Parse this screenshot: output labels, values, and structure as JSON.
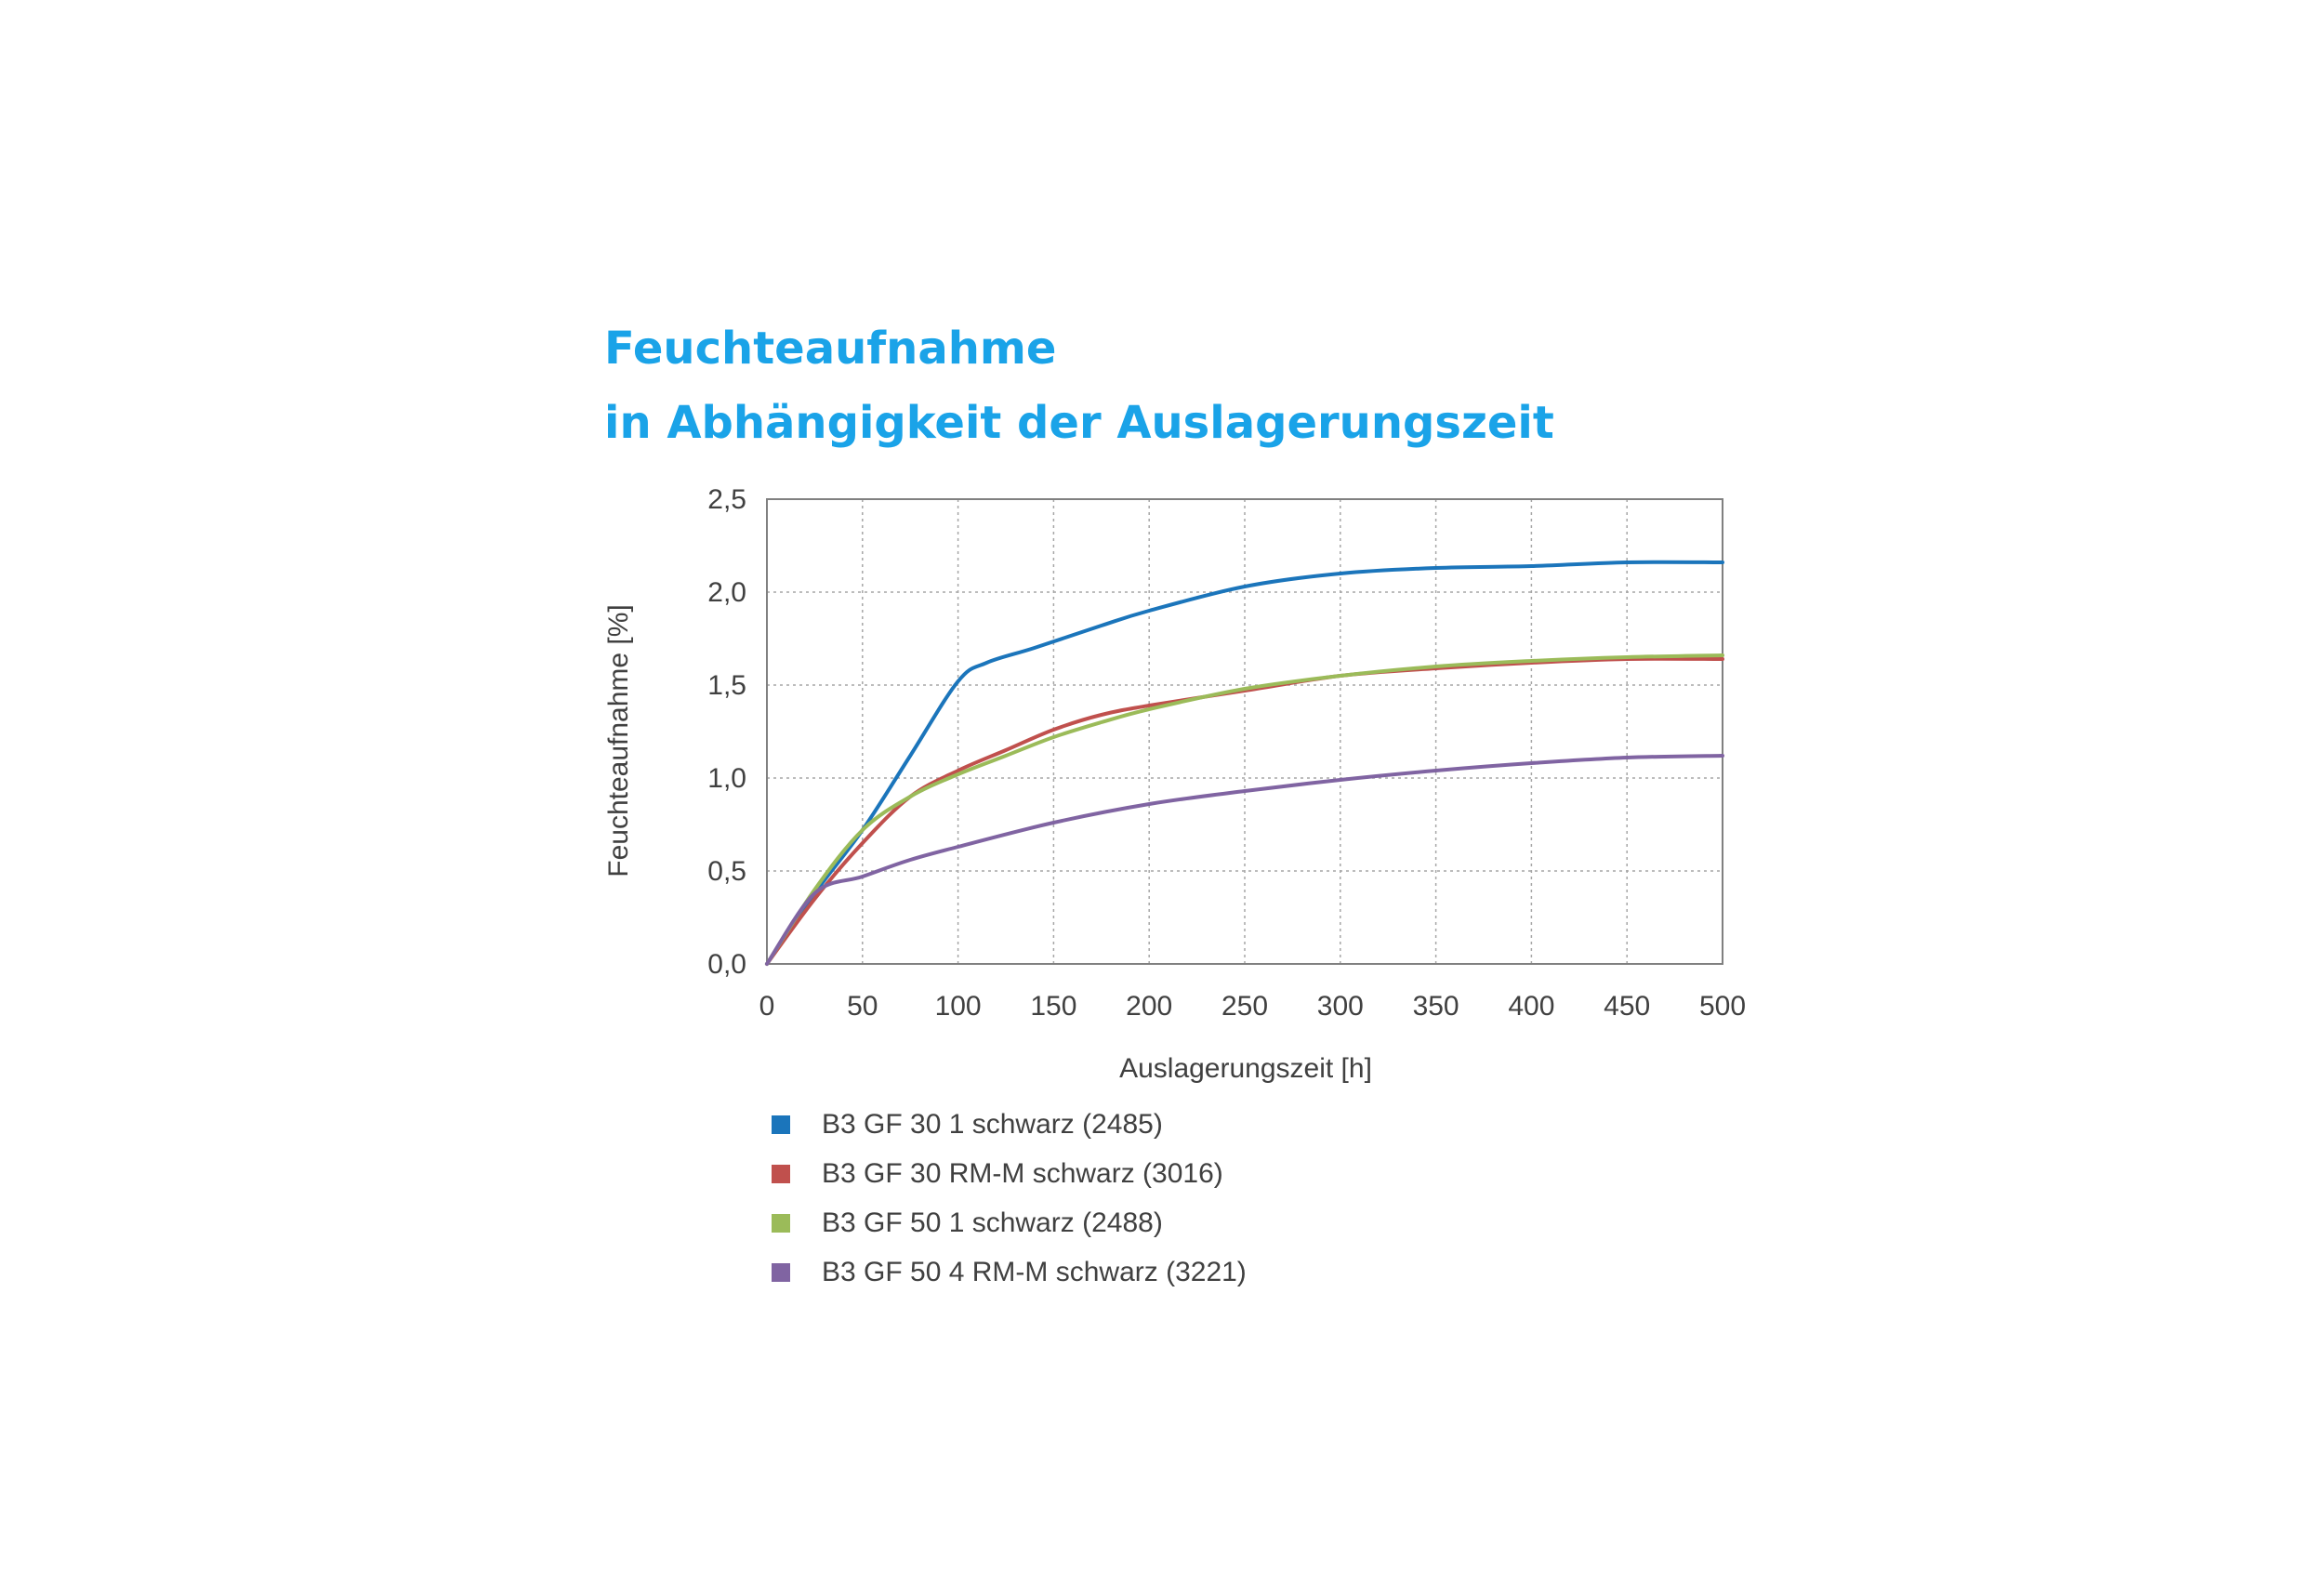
{
  "title_lines": [
    "Feuchteaufnahme",
    "in Abhängigkeit der Auslagerungszeit"
  ],
  "chart_data": {
    "type": "line",
    "title": "Feuchteaufnahme in Abhängigkeit der Auslagerungszeit",
    "xlabel": "Auslagerungszeit [h]",
    "ylabel": "Feuchteaufnahme [%]",
    "xlim": [
      0,
      500
    ],
    "ylim": [
      0,
      2.5
    ],
    "xticks": [
      0,
      50,
      100,
      150,
      200,
      250,
      300,
      350,
      400,
      450,
      500
    ],
    "yticks": [
      "0,0",
      "0,5",
      "1,0",
      "1,5",
      "2,0",
      "2,5"
    ],
    "grid": true,
    "legend_position": "bottom",
    "series": [
      {
        "name": "B3 GF 30 1 schwarz (2485)",
        "color": "#1b75bb",
        "x": [
          0,
          25,
          50,
          75,
          100,
          115,
          140,
          175,
          200,
          250,
          300,
          350,
          400,
          450,
          500
        ],
        "y": [
          0,
          0.38,
          0.72,
          1.12,
          1.52,
          1.62,
          1.7,
          1.82,
          1.9,
          2.03,
          2.1,
          2.13,
          2.14,
          2.16,
          2.16
        ]
      },
      {
        "name": "B3 GF 30 RM-M schwarz (3016)",
        "color": "#c0504d",
        "x": [
          0,
          25,
          50,
          75,
          100,
          125,
          150,
          175,
          200,
          250,
          300,
          350,
          400,
          450,
          500
        ],
        "y": [
          0,
          0.35,
          0.65,
          0.9,
          1.04,
          1.15,
          1.26,
          1.34,
          1.39,
          1.47,
          1.55,
          1.59,
          1.62,
          1.64,
          1.64
        ]
      },
      {
        "name": "B3 GF 50 1 schwarz (2488)",
        "color": "#9bbb59",
        "x": [
          0,
          25,
          50,
          75,
          100,
          125,
          150,
          175,
          200,
          250,
          300,
          350,
          400,
          450,
          500
        ],
        "y": [
          0,
          0.4,
          0.72,
          0.9,
          1.02,
          1.12,
          1.22,
          1.3,
          1.37,
          1.48,
          1.55,
          1.6,
          1.63,
          1.65,
          1.66
        ]
      },
      {
        "name": "B3 GF 50 4 RM-M schwarz (3221)",
        "color": "#8064a2",
        "x": [
          0,
          25,
          50,
          75,
          100,
          150,
          200,
          250,
          300,
          350,
          400,
          450,
          500
        ],
        "y": [
          0,
          0.38,
          0.47,
          0.56,
          0.63,
          0.76,
          0.86,
          0.93,
          0.99,
          1.04,
          1.08,
          1.11,
          1.12
        ]
      }
    ]
  }
}
